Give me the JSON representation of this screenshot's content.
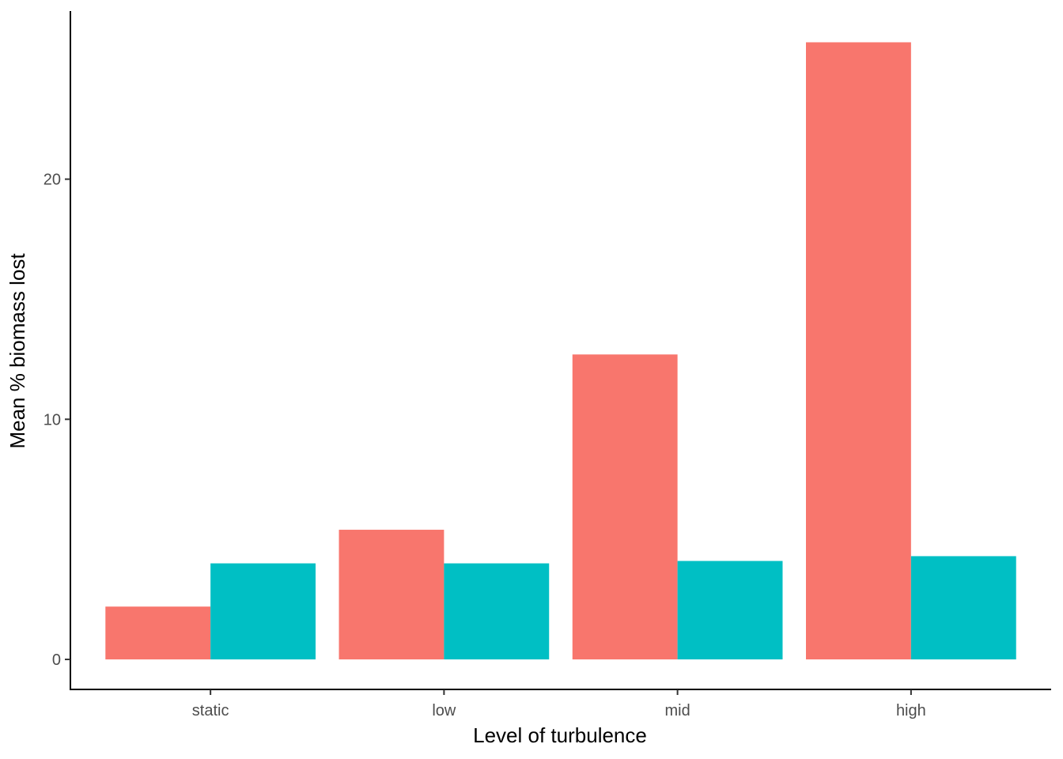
{
  "chart_data": {
    "type": "bar",
    "title": "",
    "xlabel": "Level of turbulence",
    "ylabel": "Mean % biomass lost",
    "categories": [
      "static",
      "low",
      "mid",
      "high"
    ],
    "series": [
      {
        "color": "#F8766D",
        "values": [
          2.2,
          5.4,
          12.7,
          25.7
        ]
      },
      {
        "color": "#00BFC4",
        "values": [
          4.0,
          4.0,
          4.1,
          4.3
        ]
      }
    ],
    "yticks": [
      0,
      10,
      20
    ],
    "ytick_labels": [
      "0",
      "10",
      "20"
    ],
    "ylim": [
      -1.25,
      27.0
    ],
    "grid": false,
    "legend": "none"
  }
}
